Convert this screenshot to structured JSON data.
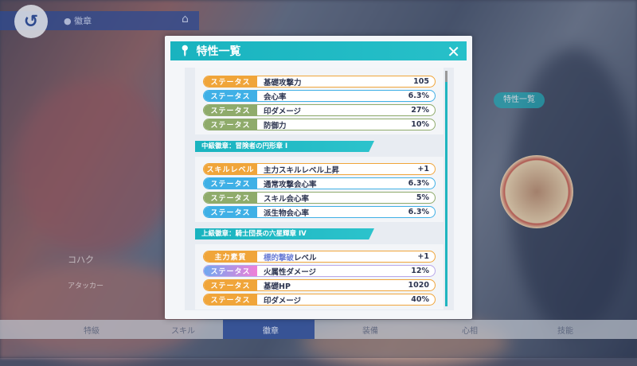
{
  "background": {
    "location": "徽章",
    "character_name": "コハク",
    "role": "アタッカー",
    "right_button": "特性一覧",
    "bottom_tabs": [
      "特級",
      "スキル",
      "徽章",
      "装備",
      "心相",
      "技能"
    ]
  },
  "modal": {
    "title": "特性一覧",
    "icon": "map-pin-icon",
    "close_icon": "close-icon",
    "groups": [
      {
        "header": "",
        "rows": [
          {
            "tag": "ステータス",
            "color": "#f0a53a",
            "name": "基礎攻撃力",
            "value": "105"
          },
          {
            "tag": "ステータス",
            "color": "#3fb0e6",
            "name": "会心率",
            "value": "6.3%"
          },
          {
            "tag": "ステータス",
            "color": "#8fab6b",
            "name": "印ダメージ",
            "value": "27%"
          },
          {
            "tag": "ステータス",
            "color": "#8fab6b",
            "name": "防御力",
            "value": "10%"
          }
        ]
      },
      {
        "header": "中級徽章：冒険者の円形章 Ⅰ",
        "rows": [
          {
            "tag": "スキルレベル",
            "color": "#f0a53a",
            "name": "主力スキルレベル上昇",
            "value": "+1"
          },
          {
            "tag": "ステータス",
            "color": "#3fb0e6",
            "name": "通常攻撃会心率",
            "value": "6.3%"
          },
          {
            "tag": "ステータス",
            "color": "#8fab6b",
            "name": "スキル会心率",
            "value": "5%"
          },
          {
            "tag": "ステータス",
            "color": "#3fb0e6",
            "name": "派生物会心率",
            "value": "6.3%"
          }
        ]
      },
      {
        "header": "上級徽章：騎士団長の六星輝章 IV",
        "rows": [
          {
            "tag": "主力素質",
            "color": "#f0a53a",
            "name_highlight": "標的撃破",
            "name": "レベル",
            "value": "+1"
          },
          {
            "tag": "ステータス",
            "color": "linear-gradient(90deg,#6fa8f0,#f07fd8)",
            "border": "#b9a8ea",
            "name": "火属性ダメージ",
            "value": "12%"
          },
          {
            "tag": "ステータス",
            "color": "#f0a53a",
            "name": "基礎HP",
            "value": "1020"
          },
          {
            "tag": "ステータス",
            "color": "#f0a53a",
            "name": "印ダメージ",
            "value": "40%"
          }
        ]
      }
    ]
  }
}
